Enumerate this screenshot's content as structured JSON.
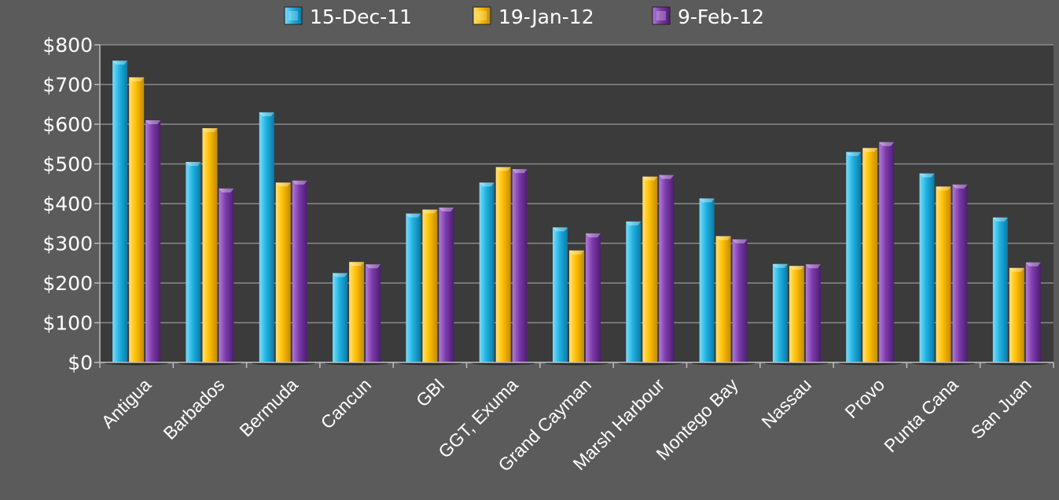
{
  "chart_data": {
    "type": "bar",
    "categories": [
      "Antigua",
      "Barbados",
      "Bermuda",
      "Cancun",
      "GBI",
      "GGT, Exuma",
      "Grand Cayman",
      "Marsh Harbour",
      "Montego Bay",
      "Nassau",
      "Provo",
      "Punta Cana",
      "San Juan"
    ],
    "series": [
      {
        "name": "15-Dec-11",
        "color": "#1aa7d6",
        "values": [
          760,
          505,
          630,
          225,
          375,
          453,
          340,
          355,
          413,
          248,
          530,
          476,
          365
        ]
      },
      {
        "name": "19-Jan-12",
        "color": "#f0b400",
        "values": [
          718,
          590,
          453,
          253,
          385,
          492,
          282,
          468,
          318,
          243,
          540,
          443,
          238
        ]
      },
      {
        "name": "9-Feb-12",
        "color": "#7a3aa8",
        "values": [
          610,
          438,
          458,
          247,
          390,
          487,
          325,
          472,
          310,
          247,
          555,
          448,
          252
        ]
      }
    ],
    "yticks": [
      "$0",
      "$100",
      "$200",
      "$300",
      "$400",
      "$500",
      "$600",
      "$700",
      "$800"
    ],
    "ylim": [
      0,
      800
    ],
    "grid": true,
    "legend_position": "top"
  }
}
